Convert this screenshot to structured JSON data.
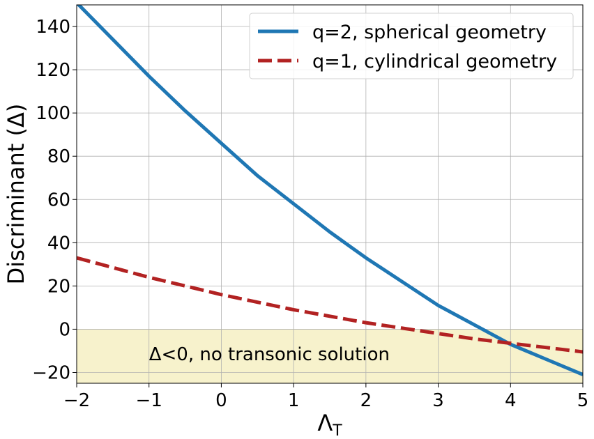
{
  "chart_data": {
    "type": "line",
    "xlabel": "Λ",
    "xlabel_sub": "T",
    "ylabel": "Discriminant (Δ)",
    "xlim": [
      -2,
      5
    ],
    "ylim": [
      -25,
      150
    ],
    "xticks": [
      -2,
      -1,
      0,
      1,
      2,
      3,
      4,
      5
    ],
    "xtick_labels": [
      "−2",
      "−1",
      "0",
      "1",
      "2",
      "3",
      "4",
      "5"
    ],
    "yticks": [
      -20,
      0,
      20,
      40,
      60,
      80,
      100,
      120,
      140
    ],
    "ytick_labels": [
      "−20",
      "0",
      "20",
      "40",
      "60",
      "80",
      "100",
      "120",
      "140"
    ],
    "grid": true,
    "legend_position": "top-right",
    "series": [
      {
        "name": "q=2, spherical geometry",
        "color": "#1f77b4",
        "style": "solid",
        "x": [
          -2,
          -1.5,
          -1,
          -0.5,
          0,
          0.5,
          1,
          1.5,
          2,
          2.5,
          3,
          3.5,
          4,
          4.5,
          5
        ],
        "y": [
          151,
          134,
          117,
          101,
          86,
          71,
          58,
          45,
          33,
          22,
          11,
          2,
          -7,
          -14,
          -21
        ]
      },
      {
        "name": "q=1, cylindrical geometry",
        "color": "#b22222",
        "style": "dashed",
        "x": [
          -2,
          -1.5,
          -1,
          -0.5,
          0,
          0.5,
          1,
          1.5,
          2,
          2.5,
          3,
          3.5,
          4,
          4.5,
          5
        ],
        "y": [
          33,
          28.5,
          24,
          20,
          16,
          12.5,
          9,
          6,
          3,
          0.5,
          -2,
          -4.5,
          -6.5,
          -8.5,
          -10.5
        ]
      }
    ],
    "shaded_region": {
      "y_from": -25,
      "y_to": 0,
      "color": "#f7f2cc",
      "label": "Δ<0, no transonic solution"
    }
  }
}
